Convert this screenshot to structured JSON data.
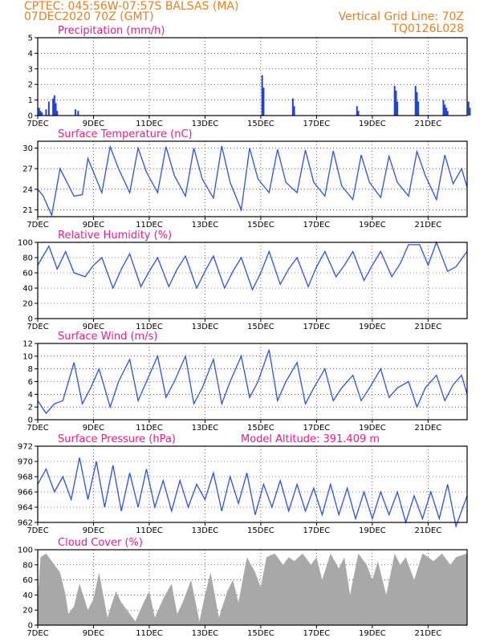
{
  "header": {
    "line1": "CPTEC:   045:56W-07:57S   BALSAS (MA)",
    "line2": "07DEC2020 70Z (GMT)",
    "right1": "Vertical Grid Line: 70Z",
    "right2": "TQ0126L028"
  },
  "colors": {
    "line": "#3050e0",
    "bar": "#2040e0",
    "cloud": "#a8a8a8",
    "title": "#e0208f",
    "header": "#e0822b"
  },
  "x_ticks": [
    "7DEC",
    "9DEC",
    "11DEC",
    "13DEC",
    "15DEC",
    "17DEC",
    "19DEC",
    "21DEC"
  ],
  "chart_data": [
    {
      "type": "bar",
      "title": "Precipitation (mm/h)",
      "ylim": [
        0,
        5
      ],
      "yticks": [
        0,
        1,
        2,
        3,
        4,
        5
      ],
      "grid": true,
      "x_days": [
        0.05,
        0.1,
        0.15,
        0.3,
        0.4,
        0.55,
        0.6,
        0.65,
        0.7,
        1.35,
        1.45,
        8.05,
        8.1,
        9.15,
        9.2,
        11.45,
        11.5,
        12.8,
        12.85,
        12.9,
        13.55,
        13.6,
        13.65,
        14.55,
        14.6,
        14.65,
        14.7,
        15.45,
        15.5
      ],
      "values": [
        0.5,
        0.3,
        0.2,
        0.4,
        0.9,
        1.1,
        1.3,
        0.8,
        0.3,
        0.4,
        0.3,
        2.6,
        1.8,
        1.1,
        0.6,
        0.6,
        0.3,
        1.9,
        1.6,
        0.9,
        1.9,
        1.5,
        0.9,
        1.0,
        0.7,
        0.5,
        0.3,
        0.9,
        0.5
      ]
    },
    {
      "type": "line",
      "title": "Surface Temperature (nC)",
      "ylim": [
        20,
        31
      ],
      "yticks": [
        21,
        24,
        27,
        30
      ],
      "grid": true,
      "x_days": [
        0,
        0.2,
        0.5,
        0.8,
        1.3,
        1.6,
        1.8,
        2.0,
        2.3,
        2.6,
        2.9,
        3.3,
        3.6,
        3.9,
        4.3,
        4.6,
        4.9,
        5.3,
        5.6,
        5.9,
        6.3,
        6.6,
        6.9,
        7.3,
        7.6,
        7.9,
        8.3,
        8.6,
        8.9,
        9.3,
        9.6,
        9.9,
        10.3,
        10.6,
        10.9,
        11.3,
        11.6,
        11.9,
        12.3,
        12.6,
        12.9,
        13.3,
        13.6,
        13.9,
        14.3,
        14.6,
        14.9,
        15.2,
        15.4
      ],
      "values": [
        24.0,
        23.0,
        20.2,
        27.0,
        23.0,
        23.2,
        28.5,
        26.5,
        23.5,
        30.2,
        27.0,
        23.5,
        30.0,
        26.5,
        23.5,
        30.2,
        26.0,
        23.0,
        30.0,
        25.5,
        22.7,
        30.3,
        25.0,
        21.0,
        30.0,
        25.5,
        23.5,
        29.8,
        25.0,
        23.5,
        29.7,
        25.0,
        23.0,
        29.6,
        24.5,
        22.5,
        29.0,
        25.0,
        22.8,
        28.8,
        25.0,
        23.0,
        29.5,
        26.0,
        22.5,
        29.0,
        24.8,
        27.0,
        24.3
      ]
    },
    {
      "type": "line",
      "title": "Relative Humidity (%)",
      "ylim": [
        0,
        100
      ],
      "yticks": [
        0,
        20,
        40,
        60,
        80,
        100
      ],
      "grid": true,
      "x_days": [
        0,
        0.4,
        0.7,
        1.0,
        1.3,
        1.7,
        2.0,
        2.3,
        2.7,
        3.0,
        3.3,
        3.7,
        4.0,
        4.3,
        4.7,
        5.0,
        5.3,
        5.7,
        6.0,
        6.3,
        6.7,
        7.0,
        7.3,
        7.7,
        8.0,
        8.3,
        8.7,
        9.0,
        9.3,
        9.7,
        10.0,
        10.3,
        10.7,
        11.0,
        11.3,
        11.7,
        12.0,
        12.3,
        12.7,
        13.0,
        13.3,
        13.7,
        14.0,
        14.3,
        14.7,
        15.0,
        15.4
      ],
      "values": [
        70,
        95,
        65,
        88,
        60,
        55,
        70,
        80,
        40,
        65,
        85,
        42,
        62,
        80,
        42,
        65,
        82,
        40,
        62,
        82,
        40,
        62,
        80,
        38,
        60,
        88,
        45,
        65,
        80,
        42,
        68,
        88,
        55,
        70,
        88,
        50,
        70,
        88,
        55,
        72,
        97,
        97,
        70,
        100,
        62,
        68,
        88
      ]
    },
    {
      "type": "line",
      "title": "Surface Wind (m/s)",
      "ylim": [
        0,
        12
      ],
      "yticks": [
        0,
        2,
        4,
        6,
        8,
        10,
        12
      ],
      "grid": true,
      "x_days": [
        0,
        0.3,
        0.6,
        0.9,
        1.3,
        1.6,
        1.9,
        2.2,
        2.6,
        2.9,
        3.3,
        3.6,
        3.9,
        4.3,
        4.6,
        4.9,
        5.3,
        5.6,
        5.9,
        6.3,
        6.6,
        6.9,
        7.3,
        7.6,
        7.9,
        8.3,
        8.6,
        8.9,
        9.3,
        9.6,
        9.9,
        10.3,
        10.6,
        10.9,
        11.3,
        11.6,
        11.9,
        12.3,
        12.6,
        12.9,
        13.3,
        13.6,
        13.9,
        14.3,
        14.6,
        14.9,
        15.2,
        15.4
      ],
      "values": [
        3.0,
        1.0,
        2.5,
        3.0,
        9.0,
        2.5,
        5.0,
        8.0,
        2.0,
        6.0,
        9.5,
        3.0,
        6.0,
        10.0,
        3.5,
        6.0,
        10.0,
        2.5,
        5.0,
        9.5,
        2.5,
        6.0,
        10.0,
        3.5,
        6.0,
        11.0,
        3.0,
        6.0,
        9.0,
        2.5,
        5.0,
        8.0,
        3.0,
        5.0,
        7.0,
        3.0,
        5.0,
        8.0,
        3.5,
        5.0,
        6.0,
        2.0,
        5.0,
        7.0,
        3.0,
        5.5,
        7.0,
        4.0
      ]
    },
    {
      "type": "line",
      "title": "Surface Pressure (hPa)",
      "annotation": "Model Altitude: 391.409 m",
      "ylim": [
        962,
        972
      ],
      "yticks": [
        962,
        964,
        966,
        968,
        970,
        972
      ],
      "grid": true,
      "x_days": [
        0,
        0.3,
        0.6,
        0.9,
        1.2,
        1.5,
        1.8,
        2.1,
        2.4,
        2.7,
        3.0,
        3.3,
        3.6,
        3.9,
        4.2,
        4.5,
        4.8,
        5.1,
        5.4,
        5.7,
        6.0,
        6.3,
        6.6,
        6.9,
        7.2,
        7.5,
        7.8,
        8.1,
        8.4,
        8.7,
        9.0,
        9.3,
        9.6,
        9.9,
        10.2,
        10.5,
        10.8,
        11.1,
        11.4,
        11.7,
        12.0,
        12.3,
        12.6,
        12.9,
        13.2,
        13.5,
        13.8,
        14.1,
        14.4,
        14.7,
        15.0,
        15.4
      ],
      "values": [
        967,
        969,
        966,
        968,
        965,
        970.5,
        965,
        970,
        964,
        969.5,
        963.5,
        968.5,
        964,
        969,
        964,
        967.5,
        963.5,
        967.5,
        964,
        967,
        965,
        968.5,
        963.5,
        968,
        964.5,
        968.5,
        963,
        967,
        964,
        967.5,
        963.5,
        967,
        963.5,
        966.5,
        963,
        967,
        963,
        966.5,
        962.5,
        966,
        962.5,
        966,
        963,
        966,
        962,
        965.5,
        962.5,
        966,
        962.5,
        967,
        961.5,
        965.5
      ]
    },
    {
      "type": "area",
      "title": "Cloud Cover (%)",
      "ylim": [
        0,
        100
      ],
      "yticks": [
        0,
        20,
        40,
        60,
        80,
        100
      ],
      "grid": true,
      "x_days": [
        0,
        0.1,
        0.3,
        0.5,
        0.8,
        1.0,
        1.1,
        1.3,
        1.5,
        1.8,
        2.0,
        2.2,
        2.5,
        2.8,
        3.0,
        3.2,
        3.5,
        3.8,
        4.0,
        4.2,
        4.5,
        4.8,
        5.0,
        5.2,
        5.5,
        5.8,
        6.0,
        6.2,
        6.5,
        6.8,
        7.0,
        7.2,
        7.5,
        7.8,
        8.0,
        8.2,
        8.5,
        8.8,
        9.0,
        9.2,
        9.5,
        9.8,
        10.0,
        10.2,
        10.5,
        10.8,
        11.0,
        11.2,
        11.5,
        11.8,
        12.0,
        12.2,
        12.5,
        12.8,
        13.0,
        13.2,
        13.5,
        13.8,
        14.0,
        14.2,
        14.5,
        14.8,
        15.0,
        15.4
      ],
      "values": [
        35,
        90,
        95,
        85,
        70,
        40,
        15,
        25,
        55,
        20,
        35,
        70,
        10,
        45,
        30,
        20,
        5,
        30,
        45,
        10,
        35,
        55,
        15,
        30,
        60,
        5,
        40,
        70,
        10,
        45,
        60,
        30,
        90,
        70,
        50,
        90,
        95,
        80,
        90,
        85,
        95,
        80,
        90,
        60,
        95,
        75,
        90,
        40,
        95,
        80,
        60,
        85,
        40,
        95,
        80,
        90,
        60,
        95,
        90,
        85,
        95,
        80,
        90,
        95
      ]
    }
  ]
}
